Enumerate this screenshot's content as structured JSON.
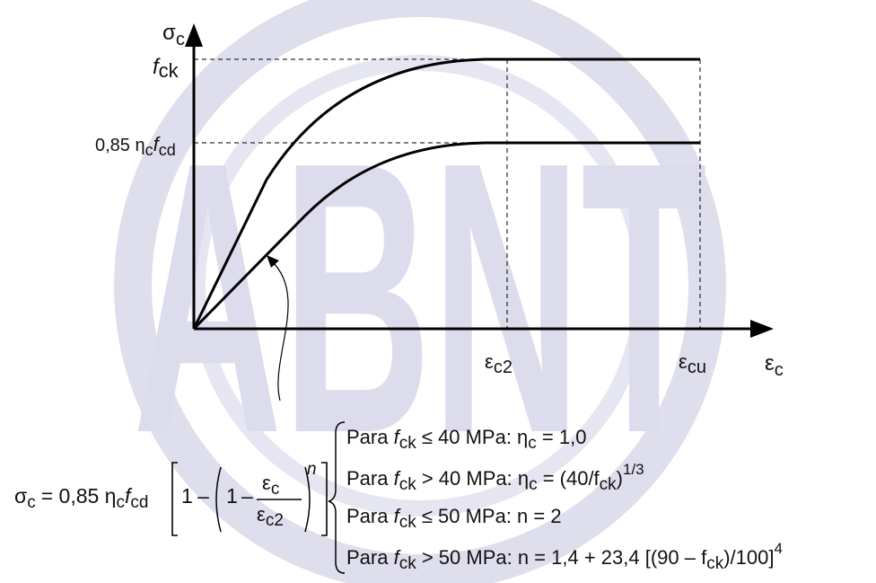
{
  "watermark": {
    "text": "ABNT",
    "color": "#dcdcec"
  },
  "diagram": {
    "y_axis_label": {
      "main": "σ",
      "sub": "c"
    },
    "x_axis_label": {
      "main": "ε",
      "sub": "c"
    },
    "level_fck": {
      "main": "f",
      "sub": "ck"
    },
    "level_design": {
      "prefix": "0,85 η",
      "sub1": "c",
      "f": "f",
      "sub2": "cd"
    },
    "strain_ec2": {
      "main": "ε",
      "sub": "c2"
    },
    "strain_ecu": {
      "main": "ε",
      "sub": "cu"
    }
  },
  "formula": {
    "lhs": {
      "sigma": "σ",
      "sub": "c"
    },
    "eq": "= 0,85 η",
    "eta_sub": "c",
    "f": "f",
    "f_sub": "cd",
    "one": "1",
    "minus": "–",
    "exponent": "n",
    "num": {
      "main": "ε",
      "sub": "c"
    },
    "den": {
      "main": "ε",
      "sub": "c2"
    }
  },
  "cases": [
    {
      "pre": "Para ",
      "f": "f",
      "fsub": "ck",
      "rest": " ≤ 40 MPa: η",
      "sub2": "c",
      "tail": " = 1,0",
      "sup": ""
    },
    {
      "pre": "Para ",
      "f": "f",
      "fsub": "ck",
      "rest": " > 40 MPa: η",
      "sub2": "c",
      "tail": " = (40/f",
      "tail_sub": "ck",
      "tail2": ")",
      "sup": "1/3"
    },
    {
      "pre": "Para ",
      "f": "f",
      "fsub": "ck",
      "rest": " ≤ 50 MPa: n = 2"
    },
    {
      "pre": "Para ",
      "f": "f",
      "fsub": "ck",
      "rest": " > 50 MPa: n = 1,4 + 23,4 [(90 – f",
      "tail_sub": "ck",
      "tail2": ")/100]",
      "sup": "4"
    }
  ]
}
